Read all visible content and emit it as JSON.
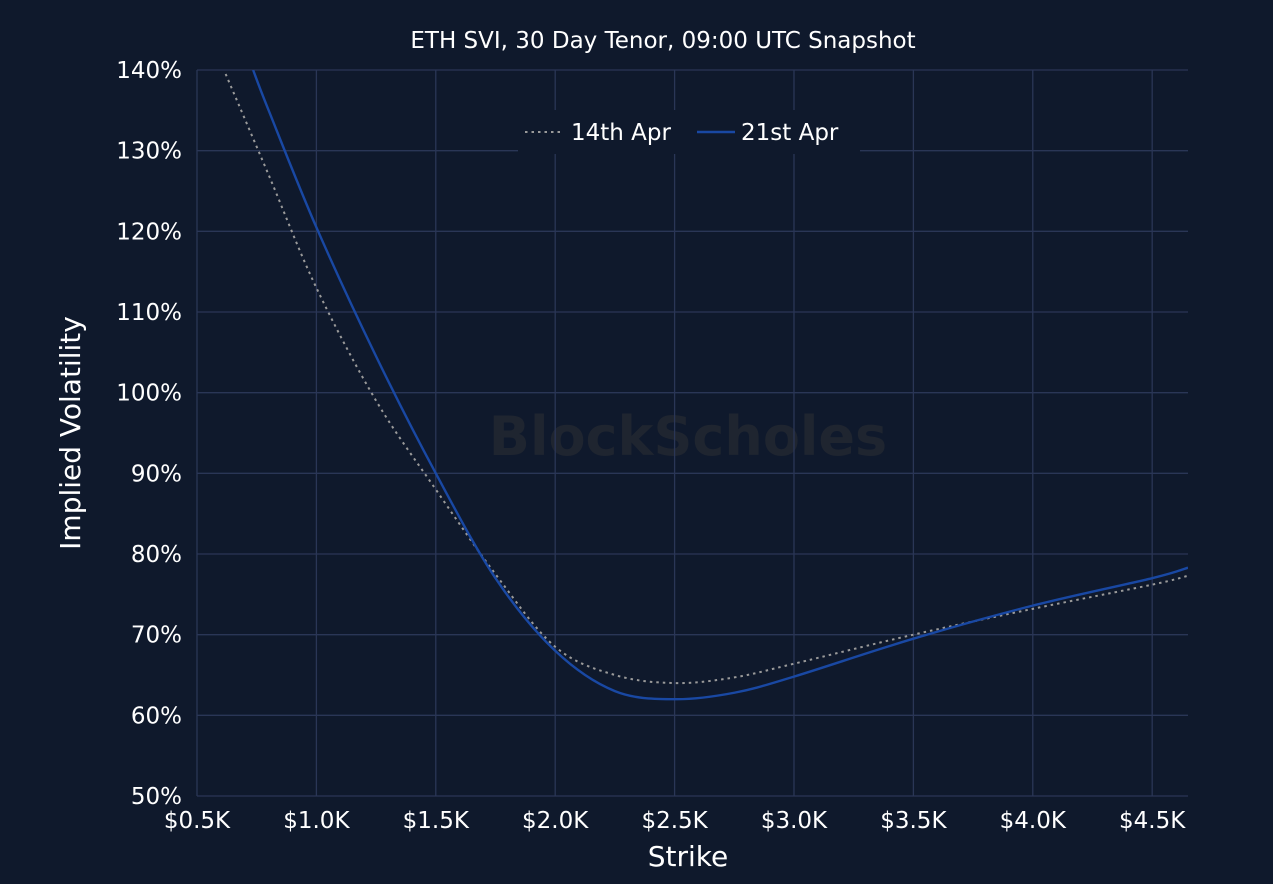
{
  "chart_data": {
    "type": "line",
    "title": "ETH SVI, 30 Day Tenor, 09:00 UTC Snapshot",
    "xlabel": "Strike",
    "ylabel": "Implied Volatility",
    "watermark": "BlockScholes",
    "xlim": [
      500,
      4650
    ],
    "ylim": [
      50,
      140
    ],
    "x_ticks": [
      500,
      1000,
      1500,
      2000,
      2500,
      3000,
      3500,
      4000,
      4500
    ],
    "x_tick_labels": [
      "$0.5K",
      "$1.0K",
      "$1.5K",
      "$2.0K",
      "$2.5K",
      "$3.0K",
      "$3.5K",
      "$4.0K",
      "$4.5K"
    ],
    "y_ticks": [
      50,
      60,
      70,
      80,
      90,
      100,
      110,
      120,
      130,
      140
    ],
    "y_tick_labels": [
      "50%",
      "60%",
      "70%",
      "80%",
      "90%",
      "100%",
      "110%",
      "120%",
      "130%",
      "140%"
    ],
    "grid": true,
    "legend_position": "top-center",
    "colors": {
      "background": "#0f192c",
      "grid": "#2a3656"
    },
    "series": [
      {
        "name": "14th Apr",
        "style": "dotted",
        "color": "#9a9a9a",
        "x": [
          620,
          800,
          1000,
          1250,
          1500,
          1750,
          2000,
          2250,
          2500,
          2750,
          3000,
          3500,
          4000,
          4500,
          4650
        ],
        "y": [
          139.5,
          127,
          113,
          99,
          88,
          77.5,
          68.5,
          65,
          64,
          64.7,
          66.4,
          70,
          73.2,
          76.2,
          77.3
        ]
      },
      {
        "name": "21st Apr",
        "style": "solid",
        "color": "#1948a3",
        "x": [
          735,
          800,
          1000,
          1250,
          1500,
          1750,
          2000,
          2250,
          2500,
          2750,
          3000,
          3500,
          4000,
          4500,
          4650
        ],
        "y": [
          140,
          135,
          120.5,
          104.5,
          90,
          77,
          68,
          63,
          62,
          62.8,
          64.8,
          69.5,
          73.6,
          77,
          78.3
        ]
      }
    ]
  }
}
